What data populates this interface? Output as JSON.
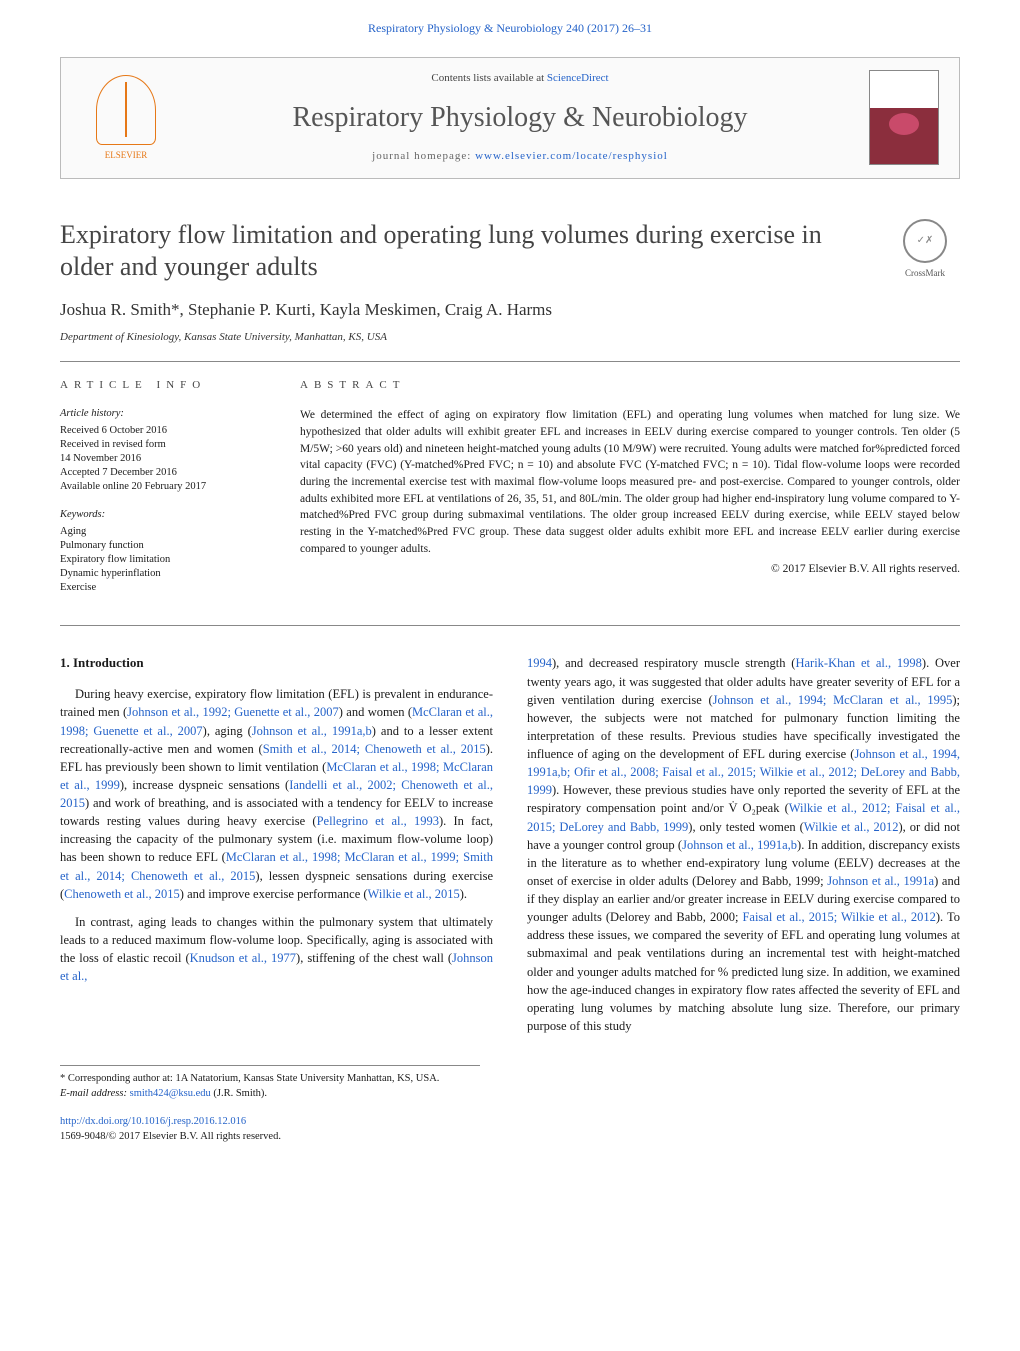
{
  "header": {
    "citation": "Respiratory Physiology & Neurobiology 240 (2017) 26–31",
    "contents_prefix": "Contents lists available at ",
    "contents_link": "ScienceDirect",
    "journal_title": "Respiratory Physiology & Neurobiology",
    "homepage_prefix": "journal homepage: ",
    "homepage_url": "www.elsevier.com/locate/resphysiol",
    "publisher_name": "ELSEVIER"
  },
  "crossmark": {
    "label": "CrossMark"
  },
  "article": {
    "title": "Expiratory flow limitation and operating lung volumes during exercise in older and younger adults",
    "authors": "Joshua R. Smith*, Stephanie P. Kurti, Kayla Meskimen, Craig A. Harms",
    "affiliation": "Department of Kinesiology, Kansas State University, Manhattan, KS, USA"
  },
  "article_info": {
    "label": "ARTICLE INFO",
    "history_heading": "Article history:",
    "received": "Received 6 October 2016",
    "revised1": "Received in revised form",
    "revised2": "14 November 2016",
    "accepted": "Accepted 7 December 2016",
    "online": "Available online 20 February 2017",
    "keywords_heading": "Keywords:",
    "kw1": "Aging",
    "kw2": "Pulmonary function",
    "kw3": "Expiratory flow limitation",
    "kw4": "Dynamic hyperinflation",
    "kw5": "Exercise"
  },
  "abstract": {
    "label": "ABSTRACT",
    "text": "We determined the effect of aging on expiratory flow limitation (EFL) and operating lung volumes when matched for lung size. We hypothesized that older adults will exhibit greater EFL and increases in EELV during exercise compared to younger controls. Ten older (5 M/5W; >60 years old) and nineteen height-matched young adults (10 M/9W) were recruited. Young adults were matched for%predicted forced vital capacity (FVC) (Y-matched%Pred FVC; n = 10) and absolute FVC (Y-matched FVC; n = 10). Tidal flow-volume loops were recorded during the incremental exercise test with maximal flow-volume loops measured pre- and post-exercise. Compared to younger controls, older adults exhibited more EFL at ventilations of 26, 35, 51, and 80L/min. The older group had higher end-inspiratory lung volume compared to Y-matched%Pred FVC group during submaximal ventilations. The older group increased EELV during exercise, while EELV stayed below resting in the Y-matched%Pred FVC group. These data suggest older adults exhibit more EFL and increase EELV earlier during exercise compared to younger adults.",
    "copyright": "© 2017 Elsevier B.V. All rights reserved."
  },
  "body": {
    "heading1": "1. Introduction",
    "p1a": "During heavy exercise, expiratory flow limitation (EFL) is prevalent in endurance-trained men (",
    "c1": "Johnson et al., 1992; Guenette et al., 2007",
    "p1b": ") and women (",
    "c2": "McClaran et al., 1998; Guenette et al., 2007",
    "p1c": "), aging (",
    "c3": "Johnson et al., 1991a,b",
    "p1d": ") and to a lesser extent recreationally-active men and women (",
    "c4": "Smith et al., 2014; Chenoweth et al., 2015",
    "p1e": "). EFL has previously been shown to limit ventilation (",
    "c5": "McClaran et al., 1998; McClaran et al., 1999",
    "p1f": "), increase dyspneic sensations (",
    "c6": "Iandelli et al., 2002; Chenoweth et al., 2015",
    "p1g": ") and work of breathing, and is associated with a tendency for EELV to increase towards resting values during heavy exercise (",
    "c7": "Pellegrino et al., 1993",
    "p1h": "). In fact, increasing the capacity of the pulmonary system (i.e. maximum flow-volume loop) has been shown to reduce EFL (",
    "c8": "McClaran et al., 1998; McClaran et al., 1999; Smith et al., 2014; Chenoweth et al., 2015",
    "p1i": "), lessen dyspneic sensations during exercise (",
    "c9": "Chenoweth et al., 2015",
    "p1j": ") and improve exercise performance (",
    "c10": "Wilkie et al., 2015",
    "p1k": ").",
    "p2a": "In contrast, aging leads to changes within the pulmonary system that ultimately leads to a reduced maximum flow-volume loop. Specifically, aging is associated with the loss of elastic recoil (",
    "c11": "Knudson et al., 1977",
    "p2b": "), stiffening of the chest wall (",
    "c12": "Johnson et al.,",
    "p3a": "1994",
    "p3b": "), and decreased respiratory muscle strength (",
    "c13": "Harik-Khan et al., 1998",
    "p3c": "). Over twenty years ago, it was suggested that older adults have greater severity of EFL for a given ventilation during exercise (",
    "c14": "Johnson et al., 1994; McClaran et al., 1995",
    "p3d": "); however, the subjects were not matched for pulmonary function limiting the interpretation of these results. Previous studies have specifically investigated the influence of aging on the development of EFL during exercise (",
    "c15": "Johnson et al., 1994, 1991a,b; Ofir et al., 2008; Faisal et al., 2015; Wilkie et al., 2012; DeLorey and Babb, 1999",
    "p3e": "). However, these previous studies have only reported the severity of EFL at the respiratory compensation point and/or V̇ O₂peak (",
    "c16": "Wilkie et al., 2012; Faisal et al., 2015; DeLorey and Babb, 1999",
    "p3f": "), only tested women (",
    "c17": "Wilkie et al., 2012",
    "p3g": "), or did not have a younger control group (",
    "c18": "Johnson et al., 1991a,b",
    "p3h": "). In addition, discrepancy exists in the literature as to whether end-expiratory lung volume (EELV) decreases at the onset of exercise in older adults (Delorey and Babb, 1999; ",
    "c19": "Johnson et al., 1991a",
    "p3i": ") and if they display an earlier and/or greater increase in EELV during exercise compared to younger adults (Delorey and Babb, 2000; ",
    "c20": "Faisal et al., 2015; Wilkie et al., 2012",
    "p3j": "). To address these issues, we compared the severity of EFL and operating lung volumes at submaximal and peak ventilations during an incremental test with height-matched older and younger adults matched for % predicted lung size. In addition, we examined how the age-induced changes in expiratory flow rates affected the severity of EFL and operating lung volumes by matching absolute lung size. Therefore, our primary purpose of this study"
  },
  "footnotes": {
    "corr": "* Corresponding author at: 1A Natatorium, Kansas State University Manhattan, KS, USA.",
    "email_label": "E-mail address: ",
    "email": "smith424@ksu.edu",
    "email_suffix": " (J.R. Smith)."
  },
  "doi": {
    "url": "http://dx.doi.org/10.1016/j.resp.2016.12.016",
    "issn_line": "1569-9048/© 2017 Elsevier B.V. All rights reserved."
  },
  "colors": {
    "link": "#2563c9",
    "publisher": "#e67817",
    "text": "#1a1a1a",
    "muted": "#555"
  }
}
